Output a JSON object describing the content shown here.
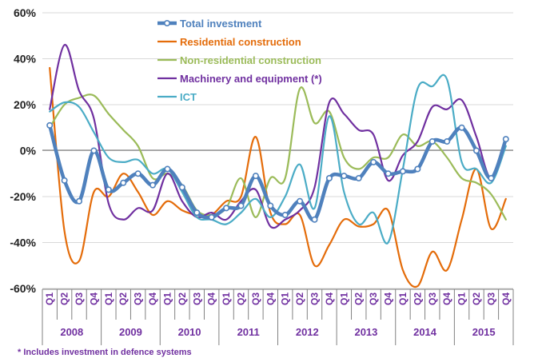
{
  "chart_data": {
    "type": "line",
    "ylim": [
      -60,
      60
    ],
    "yticks": [
      "60%",
      "40%",
      "20%",
      "0%",
      "-20%",
      "-40%",
      "-60%"
    ],
    "ytick_values": [
      60,
      40,
      20,
      0,
      -20,
      -40,
      -60
    ],
    "quarters": [
      "Q1",
      "Q2",
      "Q3",
      "Q4",
      "Q1",
      "Q2",
      "Q3",
      "Q4",
      "Q1",
      "Q2",
      "Q3",
      "Q4",
      "Q1",
      "Q2",
      "Q3",
      "Q4",
      "Q1",
      "Q2",
      "Q3",
      "Q4",
      "Q1",
      "Q2",
      "Q3",
      "Q4",
      "Q1",
      "Q2",
      "Q3",
      "Q4",
      "Q1",
      "Q2",
      "Q3",
      "Q4"
    ],
    "years": [
      "2008",
      "2009",
      "2010",
      "2011",
      "2012",
      "2013",
      "2014",
      "2015"
    ],
    "legend_position": "top-center",
    "series": [
      {
        "name": "Total investment",
        "color": "#4f81bd",
        "values": [
          11,
          -13,
          -22,
          0,
          -17,
          -14,
          -10,
          -15,
          -8,
          -16,
          -27,
          -29,
          -25,
          -24,
          -11,
          -24,
          -28,
          -22,
          -30,
          -12,
          -11,
          -12,
          -5,
          -10,
          -9,
          -8,
          4,
          4,
          10,
          0,
          -12,
          5
        ]
      },
      {
        "name": "Residential construction",
        "color": "#e46c0a",
        "values": [
          36,
          -35,
          -48,
          -18,
          -20,
          -10,
          -18,
          -28,
          -22,
          -26,
          -28,
          -28,
          -22,
          -20,
          6,
          -27,
          -32,
          -28,
          -50,
          -41,
          -30,
          -33,
          -32,
          -26,
          -52,
          -59,
          -44,
          -52,
          -30,
          -8,
          -34,
          -21
        ]
      },
      {
        "name": "Non-residential construction",
        "color": "#9bbb59",
        "values": [
          10,
          20,
          23,
          24,
          16,
          9,
          2,
          -12,
          -10,
          -15,
          -26,
          -28,
          -25,
          -12,
          -29,
          -12,
          -12,
          27,
          12,
          17,
          -3,
          -8,
          -3,
          -3,
          7,
          2,
          4,
          -3,
          -12,
          -14,
          -19,
          -30
        ]
      },
      {
        "name": "Machinery and equipment (*)",
        "color": "#7030a0",
        "values": [
          18,
          46,
          26,
          14,
          -23,
          -30,
          -25,
          -26,
          -10,
          -22,
          -29,
          -27,
          -30,
          -22,
          -17,
          -33,
          -30,
          -26,
          -16,
          21,
          16,
          9,
          7,
          -13,
          -2,
          4,
          19,
          18,
          22,
          6,
          -12,
          5
        ]
      },
      {
        "name": "ICT",
        "color": "#4bacc6",
        "values": [
          17,
          21,
          19,
          8,
          -3,
          -5,
          -4,
          -10,
          -8,
          -18,
          -29,
          -30,
          -32,
          -27,
          -21,
          -29,
          -20,
          -6,
          -25,
          15,
          -18,
          -32,
          -27,
          -40,
          -8,
          27,
          28,
          31,
          -5,
          -8,
          -14,
          2
        ]
      }
    ]
  },
  "footnote": "* Includes investment in defence  systems"
}
